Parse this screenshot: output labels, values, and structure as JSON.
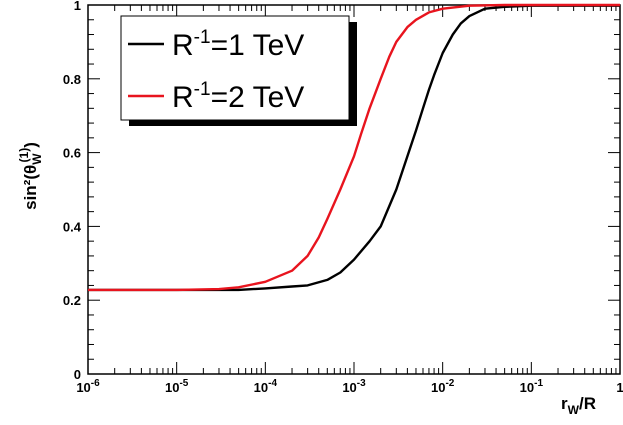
{
  "chart_data": {
    "type": "line",
    "title": "",
    "xlabel": "r_W/R",
    "ylabel": "sin²(θ_W^(1))",
    "x_scale": "log",
    "xlim": [
      1e-06,
      1
    ],
    "ylim": [
      0,
      1
    ],
    "x_ticks": [
      {
        "value": 1e-06,
        "base": "10",
        "exp": "-6"
      },
      {
        "value": 1e-05,
        "base": "10",
        "exp": "-5"
      },
      {
        "value": 0.0001,
        "base": "10",
        "exp": "-4"
      },
      {
        "value": 0.001,
        "base": "10",
        "exp": "-3"
      },
      {
        "value": 0.01,
        "base": "10",
        "exp": "-2"
      },
      {
        "value": 0.1,
        "base": "10",
        "exp": "-1"
      },
      {
        "value": 1,
        "base": "1",
        "exp": ""
      }
    ],
    "y_ticks": [
      {
        "value": 0,
        "label": "0"
      },
      {
        "value": 0.2,
        "label": "0.2"
      },
      {
        "value": 0.4,
        "label": "0.4"
      },
      {
        "value": 0.6,
        "label": "0.6"
      },
      {
        "value": 0.8,
        "label": "0.8"
      },
      {
        "value": 1,
        "label": "1"
      }
    ],
    "grid": false,
    "legend_position": "top-left",
    "series": [
      {
        "label_base": "R",
        "label_exp": "-1",
        "label_rest": "=1 TeV",
        "color": "#000000",
        "x": [
          1e-06,
          1e-05,
          5e-05,
          0.0001,
          0.0002,
          0.0003,
          0.0005,
          0.0007,
          0.001,
          0.0015,
          0.002,
          0.003,
          0.004,
          0.005,
          0.006,
          0.007,
          0.008,
          0.01,
          0.013,
          0.016,
          0.02,
          0.03,
          0.05,
          0.1,
          1
        ],
        "y": [
          0.228,
          0.228,
          0.228,
          0.232,
          0.237,
          0.24,
          0.255,
          0.275,
          0.31,
          0.36,
          0.4,
          0.5,
          0.59,
          0.66,
          0.72,
          0.77,
          0.81,
          0.87,
          0.92,
          0.95,
          0.97,
          0.99,
          0.995,
          0.998,
          0.998
        ]
      },
      {
        "label_base": "R",
        "label_exp": "-1",
        "label_rest": "=2 TeV",
        "color": "#e8141e",
        "x": [
          1e-06,
          1e-05,
          3e-05,
          5e-05,
          0.0001,
          0.0002,
          0.0003,
          0.0004,
          0.0005,
          0.0007,
          0.001,
          0.0012,
          0.0015,
          0.002,
          0.0025,
          0.003,
          0.004,
          0.005,
          0.007,
          0.01,
          0.02,
          0.05,
          1
        ],
        "y": [
          0.228,
          0.228,
          0.23,
          0.235,
          0.25,
          0.28,
          0.32,
          0.37,
          0.42,
          0.5,
          0.59,
          0.65,
          0.72,
          0.8,
          0.86,
          0.9,
          0.94,
          0.96,
          0.98,
          0.99,
          0.998,
          1.0,
          1.0
        ]
      }
    ]
  }
}
